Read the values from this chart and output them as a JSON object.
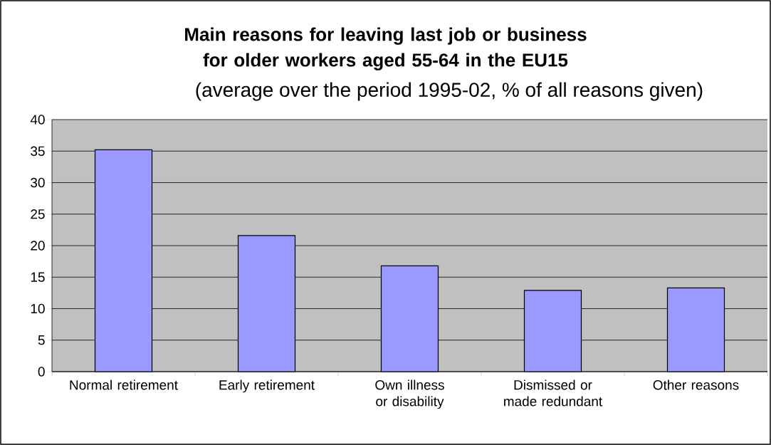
{
  "chart_data": {
    "type": "bar",
    "title": "Main reasons for leaving last job or business for older workers aged 55-64 in the EU15",
    "subtitle": "(average over the period 1995-02, % of all reasons given)",
    "categories": [
      "Normal retirement",
      "Early retirement",
      "Own illness or disability",
      "Dismissed or made redundant",
      "Other reasons"
    ],
    "values": [
      35.2,
      21.6,
      16.8,
      12.9,
      13.3
    ],
    "color": "#9999ff",
    "ylim": [
      0,
      40
    ],
    "yticks": [
      0,
      5,
      10,
      15,
      20,
      25,
      30,
      35,
      40
    ],
    "grid": "y"
  }
}
